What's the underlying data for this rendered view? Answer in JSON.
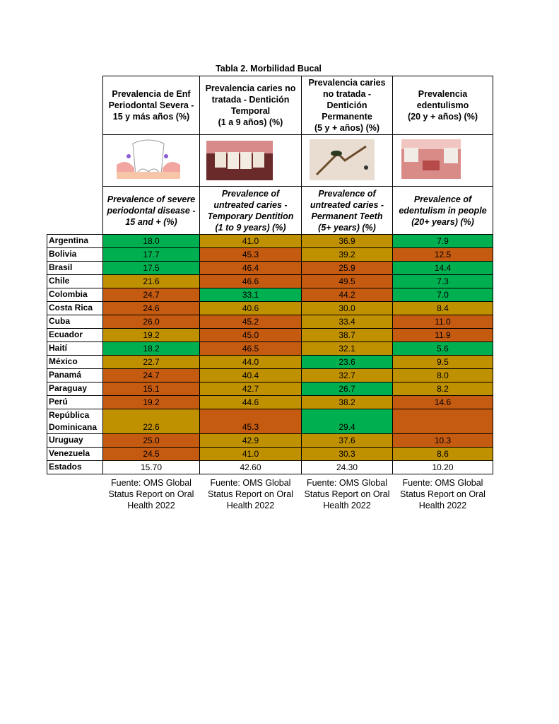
{
  "table": {
    "title": "Tabla 2. Morbilidad Bucal",
    "headers": [
      "Prevalencia de Enf\nPeriodontal Severa -\n15 y más años (%)",
      "Prevalencia caries no\ntratada - Dentición\nTemporal\n(1 a 9 años) (%)",
      "Prevalencia caries\nno tratada -\nDentición\nPermanente\n(5 y + años) (%)",
      "Prevalencia\nedentulismo\n(20 y + años) (%)"
    ],
    "headers_en": [
      "Prevalence of severe\nperiodontal disease  -\n15 and + (%)",
      "Prevalence of\nuntreated caries -\nTemporary Dentition\n(1 to 9 years) (%)",
      "Prevalence of\nuntreated caries -\nPermanent Teeth\n(5+ years) (%)",
      "Prevalence of\nedentulism in people\n(20+ years) (%)"
    ],
    "palette": {
      "g": "#00b050",
      "y": "#bf9000",
      "o": "#c55a11"
    },
    "rows": [
      [
        "Argentina",
        "18.0",
        "41.0",
        "36.9",
        "7.9"
      ],
      [
        "Bolivia",
        "17.7",
        "45.3",
        "39.2",
        "12.5"
      ],
      [
        "Brasil",
        "17.5",
        "46.4",
        "25.9",
        "14.4"
      ],
      [
        "Chile",
        "21.6",
        "46.6",
        "49.5",
        "7.3"
      ],
      [
        "Colombia",
        "24.7",
        "33.1",
        "44.2",
        "7.0"
      ],
      [
        "Costa Rica",
        "24.6",
        "40.6",
        "30.0",
        "8.4"
      ],
      [
        "Cuba",
        "26.0",
        "45.2",
        "33.4",
        "11.0"
      ],
      [
        "Ecuador",
        "19.2",
        "45.0",
        "38.7",
        "11.9"
      ],
      [
        "Haití",
        "18.2",
        "46.5",
        "32.1",
        "5.6"
      ],
      [
        "México",
        "22.7",
        "44.0",
        "23.6",
        "9.5"
      ],
      [
        "Panamá",
        "24.7",
        "40.4",
        "32.7",
        "8.0"
      ],
      [
        "Paraguay",
        "15.1",
        "42.7",
        "26.7",
        "8.2"
      ],
      [
        "Perú",
        "19.2",
        "44.6",
        "38.2",
        "14.6"
      ],
      [
        "República\nDominicana",
        "22.6",
        "45.3",
        "29.4",
        null
      ],
      [
        "Uruguay",
        "25.0",
        "42.9",
        "37.6",
        "10.3"
      ],
      [
        "Venezuela",
        "24.5",
        "41.0",
        "30.3",
        "8.6"
      ]
    ],
    "fills": [
      "gyyg",
      "goyo",
      "goog",
      "yoog",
      "ogog",
      "oyyy",
      "ooyo",
      "yoyo",
      "goyg",
      "yygy",
      "oyyy",
      "oygy",
      "oyyo",
      "yogo",
      "oyyo",
      "oyyy"
    ],
    "total_row": [
      "Estados Unidos",
      "15.70",
      "42.60",
      "24.30",
      "10.20"
    ],
    "sources": [
      "Fuente: OMS Global\nStatus Report on Oral\nHealth 2022",
      "Fuente: OMS Global\nStatus Report on Oral\nHealth 2022",
      "Fuente: OMS Global\nStatus Report on Oral\nHealth 2022",
      "Fuente: OMS Global\nStatus Report on Oral\nHealth 2022"
    ]
  }
}
